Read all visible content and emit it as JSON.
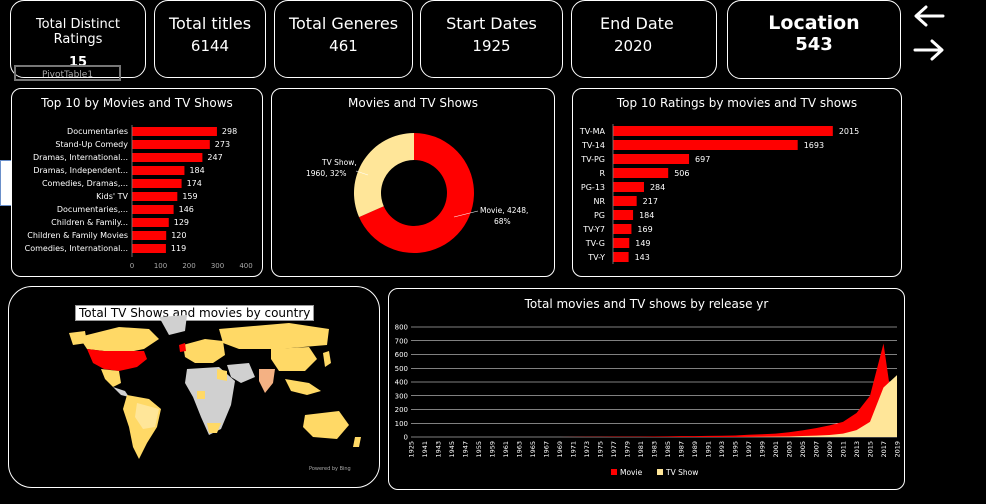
{
  "kpis": [
    {
      "title": "Total Distinct Ratings",
      "value": "15"
    },
    {
      "title": "Total titles",
      "value": "6144"
    },
    {
      "title": "Total Generes",
      "value": "461"
    },
    {
      "title": "Start Dates",
      "value": "1925"
    },
    {
      "title": "End Date",
      "value": "2020"
    },
    {
      "title": "Location",
      "value": "543"
    }
  ],
  "pivot_label": "PivotTable1",
  "nav": {
    "back_icon": "arrow-left-icon",
    "forward_icon": "arrow-right-icon"
  },
  "colors": {
    "movie": "#ff0000",
    "tv": "#ffe699",
    "country_gray": "#d0d0d0",
    "country_orange": "#f4b183",
    "country_yellow": "#ffd966"
  },
  "map": {
    "title": "Total TV Shows and movies by country",
    "credit": "Powered by Bing"
  },
  "chart_data": [
    {
      "type": "bar",
      "orientation": "horizontal",
      "title": "Top 10 by Movies and TV Shows",
      "categories": [
        "Documentaries",
        "Stand-Up Comedy",
        "Dramas, International...",
        "Dramas, Independent...",
        "Comedies, Dramas,...",
        "Kids' TV",
        "Documentaries,...",
        "Children & Family...",
        "Children & Family Movies",
        "Comedies, International..."
      ],
      "values": [
        298,
        273,
        247,
        184,
        174,
        159,
        146,
        129,
        120,
        119
      ],
      "xlim": [
        0,
        400
      ],
      "xticks": [
        0,
        100,
        200,
        300,
        400
      ]
    },
    {
      "type": "pie",
      "title": "Movies and TV Shows",
      "labels": [
        "Movie",
        "TV Show"
      ],
      "values": [
        4248,
        1960
      ],
      "percents": [
        "68%",
        "32%"
      ],
      "label_texts": [
        "Movie, 4248, 68%",
        "TV Show, 1960, 32%"
      ]
    },
    {
      "type": "bar",
      "orientation": "horizontal",
      "title": "Top 10 Ratings by movies and TV shows",
      "categories": [
        "TV-MA",
        "TV-14",
        "TV-PG",
        "R",
        "PG-13",
        "NR",
        "PG",
        "TV-Y7",
        "TV-G",
        "TV-Y"
      ],
      "values": [
        2015,
        1693,
        697,
        506,
        284,
        217,
        184,
        169,
        149,
        143
      ],
      "xlim": [
        0,
        2200
      ]
    },
    {
      "type": "area",
      "title": "Total movies and TV shows by release yr",
      "x": [
        1925,
        1941,
        1943,
        1945,
        1947,
        1955,
        1959,
        1961,
        1963,
        1965,
        1967,
        1969,
        1971,
        1973,
        1975,
        1977,
        1979,
        1981,
        1983,
        1985,
        1987,
        1989,
        1991,
        1993,
        1995,
        1997,
        1999,
        2001,
        2003,
        2005,
        2007,
        2009,
        2011,
        2013,
        2015,
        2017,
        2019
      ],
      "x_tick_labels": [
        "1925",
        "1941",
        "1943",
        "1945",
        "1947",
        "1955",
        "1959",
        "1961",
        "1963",
        "1965",
        "1967",
        "1969",
        "1971",
        "1973",
        "1975",
        "1977",
        "1979",
        "1981",
        "1983",
        "1985",
        "1987",
        "1989",
        "1991",
        "1993",
        "1995",
        "1997",
        "1999",
        "2001",
        "2003",
        "2005",
        "2007",
        "2009",
        "2011",
        "2013",
        "2015",
        "2017",
        "2019"
      ],
      "series": [
        {
          "name": "Movie",
          "values": [
            0,
            0,
            0,
            0,
            0,
            0,
            0,
            0,
            0,
            0,
            0,
            0,
            1,
            2,
            2,
            3,
            3,
            3,
            4,
            5,
            6,
            6,
            8,
            9,
            11,
            16,
            20,
            25,
            35,
            48,
            65,
            85,
            110,
            175,
            300,
            680,
            0
          ]
        },
        {
          "name": "TV Show",
          "values": [
            0,
            0,
            0,
            0,
            0,
            0,
            0,
            0,
            0,
            0,
            0,
            0,
            0,
            0,
            0,
            0,
            0,
            0,
            0,
            0,
            0,
            0,
            0,
            0,
            0,
            1,
            2,
            3,
            4,
            7,
            10,
            15,
            25,
            50,
            110,
            360,
            450
          ]
        }
      ],
      "ylim": [
        0,
        800
      ],
      "yticks": [
        0,
        100,
        200,
        300,
        400,
        500,
        600,
        700,
        800
      ],
      "legend": "bottom"
    }
  ]
}
